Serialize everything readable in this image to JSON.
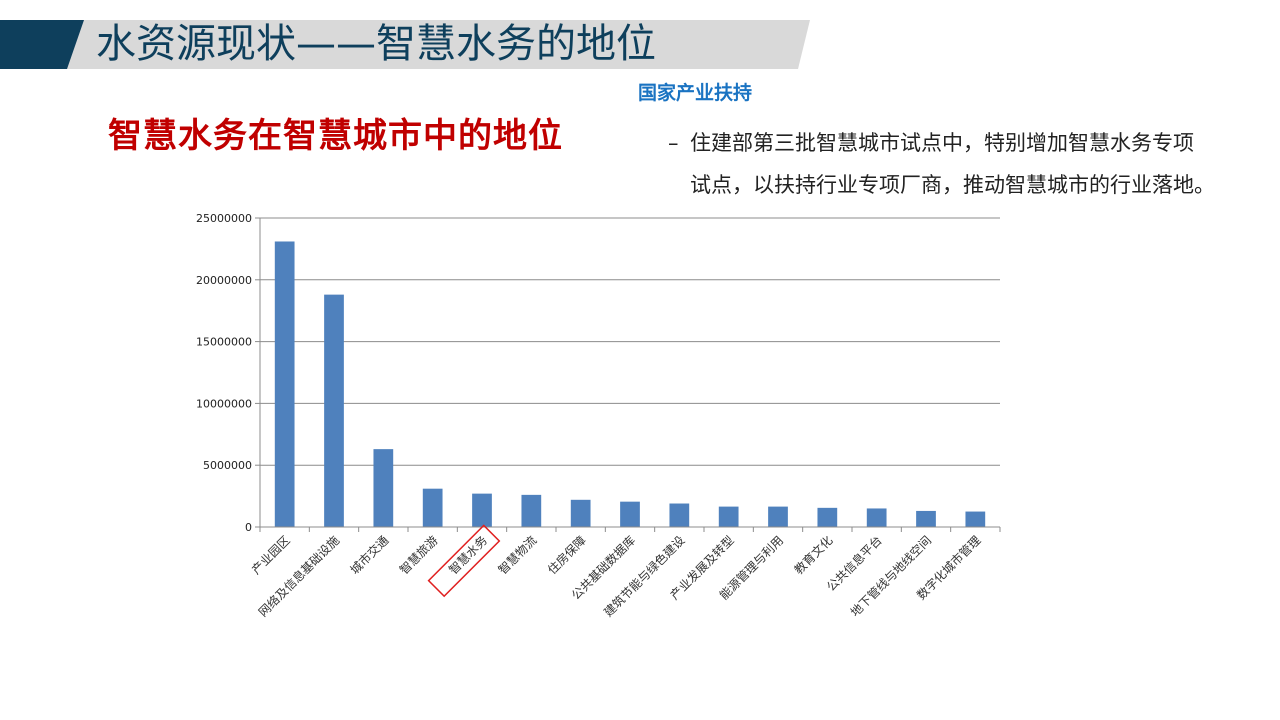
{
  "header": {
    "title": "水资源现状——智慧水务的地位",
    "band_color": "#0e3f5c",
    "band_bg": "#d9d9d9"
  },
  "subtitle": "智慧水务在智慧城市中的地位",
  "support": {
    "heading": "国家产业扶持",
    "bullet": "–",
    "lines": [
      "住建部第三批智慧城市试点中，特别增加智慧水务专项",
      "试点，以扶持行业专项厂商，推动智慧城市的行业落地。"
    ]
  },
  "chart_data": {
    "type": "bar",
    "title": "",
    "xlabel": "",
    "ylabel": "",
    "ylim": [
      0,
      25000000
    ],
    "yticks": [
      "0",
      "5000000",
      "10000000",
      "15000000",
      "20000000",
      "25000000"
    ],
    "grid": true,
    "legend": "none",
    "bar_color": "#4f81bd",
    "highlight": {
      "category": "智慧水务",
      "color": "#e02020",
      "shape": "rotated-rectangle"
    },
    "categories": [
      "产业园区",
      "网络及信息基础设施",
      "城市交通",
      "智慧旅游",
      "智慧水务",
      "智慧物流",
      "住房保障",
      "公共基础数据库",
      "建筑节能与绿色建设",
      "产业发展及转型",
      "能源管理与利用",
      "教育文化",
      "公共信息平台",
      "地下管线与地线空间",
      "数字化城市管理"
    ],
    "values": [
      23100000,
      18800000,
      6300000,
      3100000,
      2700000,
      2600000,
      2200000,
      2050000,
      1900000,
      1650000,
      1650000,
      1550000,
      1500000,
      1300000,
      1250000
    ]
  }
}
